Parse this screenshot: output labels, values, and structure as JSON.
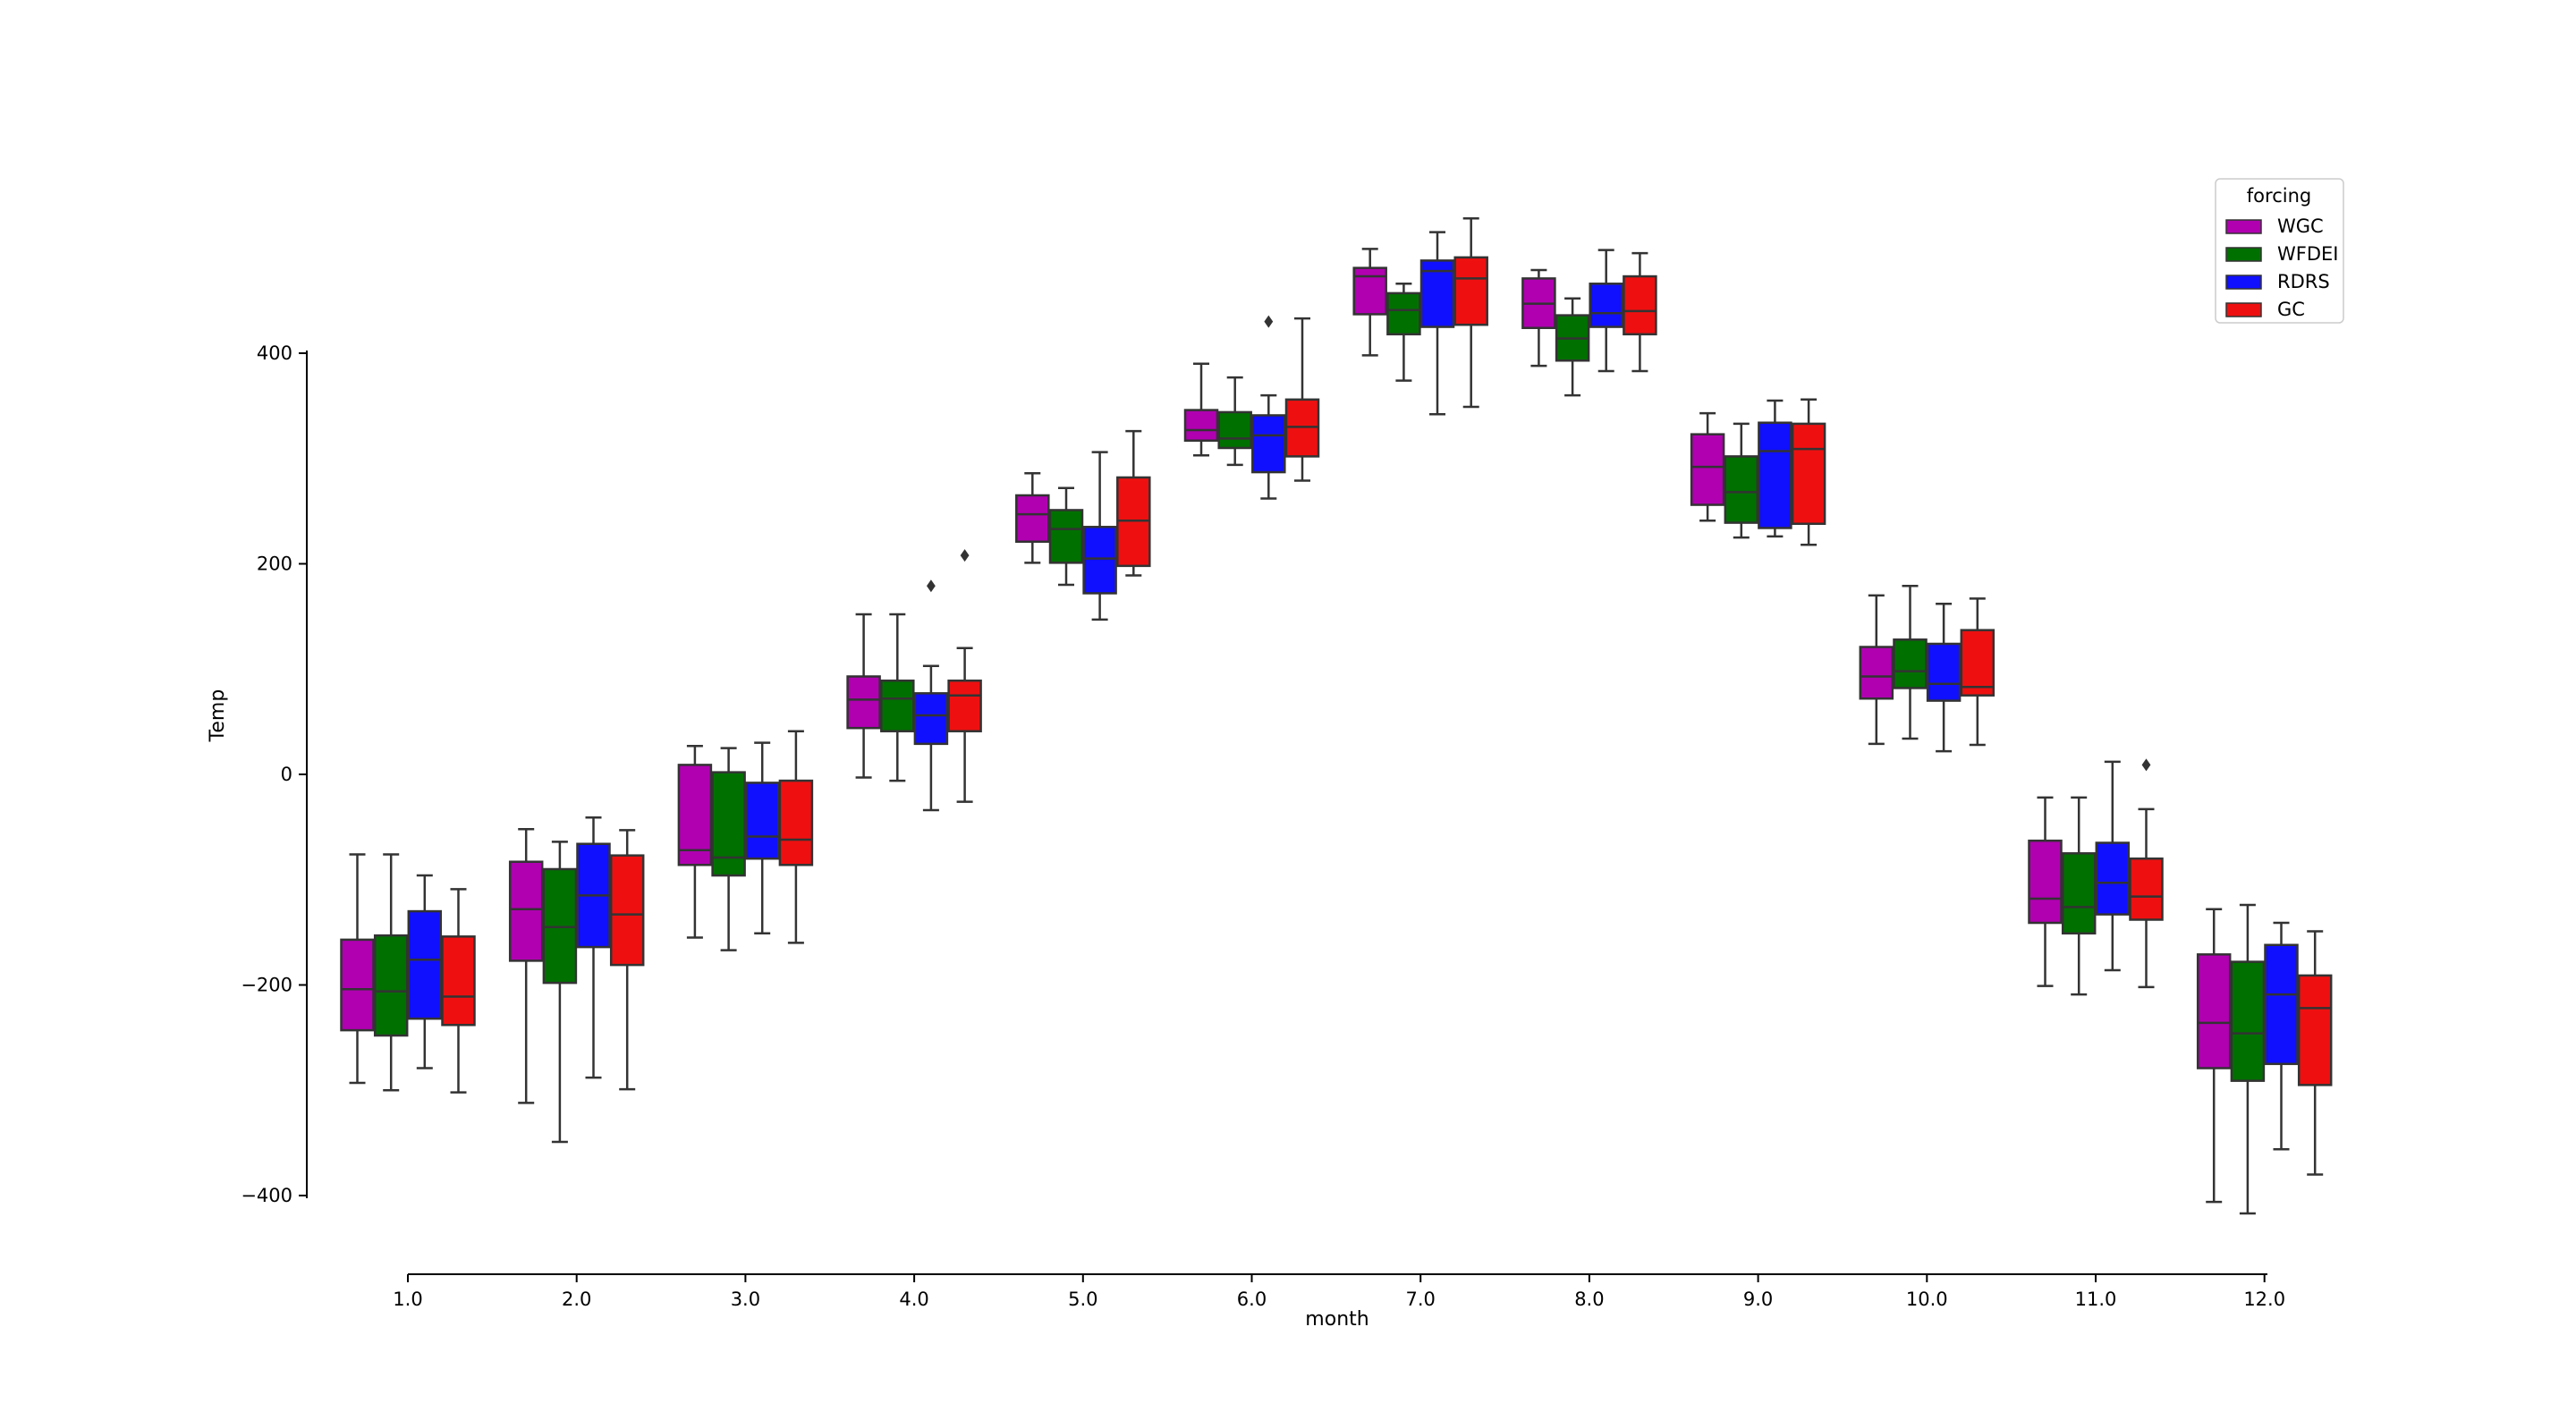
{
  "chart_data": {
    "type": "box",
    "xlabel": "month",
    "ylabel": "Temp",
    "categories": [
      "1.0",
      "2.0",
      "3.0",
      "4.0",
      "5.0",
      "6.0",
      "7.0",
      "8.0",
      "9.0",
      "10.0",
      "11.0",
      "12.0"
    ],
    "ylim": [
      -400,
      400
    ],
    "yticks": [
      -400,
      -200,
      0,
      200,
      400
    ],
    "grid": false,
    "legend": {
      "title": "forcing",
      "position": "top-right"
    },
    "series": [
      {
        "name": "WGC",
        "color": "#b000b0",
        "boxes": [
          {
            "whislo": -293,
            "q1": -243,
            "med": -204,
            "q3": -157,
            "whishi": -76,
            "fliers": []
          },
          {
            "whislo": -312,
            "q1": -177,
            "med": -128,
            "q3": -83,
            "whishi": -52,
            "fliers": []
          },
          {
            "whislo": -155,
            "q1": -86,
            "med": -72,
            "q3": 9,
            "whishi": 27,
            "fliers": []
          },
          {
            "whislo": -3,
            "q1": 44,
            "med": 71,
            "q3": 93,
            "whishi": 152,
            "fliers": []
          },
          {
            "whislo": 201,
            "q1": 221,
            "med": 247,
            "q3": 265,
            "whishi": 286,
            "fliers": []
          },
          {
            "whislo": 303,
            "q1": 317,
            "med": 327,
            "q3": 346,
            "whishi": 390,
            "fliers": []
          },
          {
            "whislo": 398,
            "q1": 437,
            "med": 473,
            "q3": 481,
            "whishi": 499,
            "fliers": []
          },
          {
            "whislo": 388,
            "q1": 424,
            "med": 447,
            "q3": 471,
            "whishi": 479,
            "fliers": []
          },
          {
            "whislo": 241,
            "q1": 256,
            "med": 292,
            "q3": 323,
            "whishi": 343,
            "fliers": []
          },
          {
            "whislo": 29,
            "q1": 72,
            "med": 93,
            "q3": 121,
            "whishi": 170,
            "fliers": []
          },
          {
            "whislo": -201,
            "q1": -141,
            "med": -118,
            "q3": -63,
            "whishi": -22,
            "fliers": []
          },
          {
            "whislo": -406,
            "q1": -279,
            "med": -236,
            "q3": -171,
            "whishi": -128,
            "fliers": []
          }
        ]
      },
      {
        "name": "WFDEI",
        "color": "#007000",
        "boxes": [
          {
            "whislo": -300,
            "q1": -248,
            "med": -206,
            "q3": -153,
            "whishi": -76,
            "fliers": []
          },
          {
            "whislo": -349,
            "q1": -198,
            "med": -145,
            "q3": -90,
            "whishi": -64,
            "fliers": []
          },
          {
            "whislo": -167,
            "q1": -96,
            "med": -79,
            "q3": 2,
            "whishi": 25,
            "fliers": []
          },
          {
            "whislo": -6,
            "q1": 41,
            "med": 72,
            "q3": 89,
            "whishi": 152,
            "fliers": []
          },
          {
            "whislo": 180,
            "q1": 201,
            "med": 233,
            "q3": 251,
            "whishi": 272,
            "fliers": []
          },
          {
            "whislo": 294,
            "q1": 310,
            "med": 319,
            "q3": 344,
            "whishi": 377,
            "fliers": []
          },
          {
            "whislo": 374,
            "q1": 418,
            "med": 441,
            "q3": 457,
            "whishi": 466,
            "fliers": []
          },
          {
            "whislo": 360,
            "q1": 393,
            "med": 414,
            "q3": 436,
            "whishi": 452,
            "fliers": []
          },
          {
            "whislo": 225,
            "q1": 239,
            "med": 268,
            "q3": 302,
            "whishi": 333,
            "fliers": []
          },
          {
            "whislo": 34,
            "q1": 82,
            "med": 98,
            "q3": 128,
            "whishi": 179,
            "fliers": []
          },
          {
            "whislo": -209,
            "q1": -151,
            "med": -126,
            "q3": -75,
            "whishi": -22,
            "fliers": []
          },
          {
            "whislo": -417,
            "q1": -291,
            "med": -246,
            "q3": -178,
            "whishi": -124,
            "fliers": []
          }
        ]
      },
      {
        "name": "RDRS",
        "color": "#1010ff",
        "boxes": [
          {
            "whislo": -279,
            "q1": -232,
            "med": -176,
            "q3": -130,
            "whishi": -96,
            "fliers": []
          },
          {
            "whislo": -288,
            "q1": -164,
            "med": -115,
            "q3": -66,
            "whishi": -41,
            "fliers": []
          },
          {
            "whislo": -151,
            "q1": -80,
            "med": -59,
            "q3": -8,
            "whishi": 30,
            "fliers": []
          },
          {
            "whislo": -34,
            "q1": 29,
            "med": 56,
            "q3": 77,
            "whishi": 103,
            "fliers": [
              179
            ]
          },
          {
            "whislo": 147,
            "q1": 172,
            "med": 205,
            "q3": 235,
            "whishi": 306,
            "fliers": []
          },
          {
            "whislo": 262,
            "q1": 287,
            "med": 322,
            "q3": 341,
            "whishi": 360,
            "fliers": [
              430
            ]
          },
          {
            "whislo": 342,
            "q1": 425,
            "med": 478,
            "q3": 488,
            "whishi": 515,
            "fliers": []
          },
          {
            "whislo": 383,
            "q1": 425,
            "med": 438,
            "q3": 466,
            "whishi": 498,
            "fliers": []
          },
          {
            "whislo": 226,
            "q1": 234,
            "med": 307,
            "q3": 334,
            "whishi": 355,
            "fliers": []
          },
          {
            "whislo": 22,
            "q1": 70,
            "med": 86,
            "q3": 124,
            "whishi": 162,
            "fliers": []
          },
          {
            "whislo": -186,
            "q1": -133,
            "med": -103,
            "q3": -65,
            "whishi": 12,
            "fliers": []
          },
          {
            "whislo": -356,
            "q1": -275,
            "med": -209,
            "q3": -162,
            "whishi": -141,
            "fliers": []
          }
        ]
      },
      {
        "name": "GC",
        "color": "#ee1010",
        "boxes": [
          {
            "whislo": -302,
            "q1": -238,
            "med": -211,
            "q3": -154,
            "whishi": -109,
            "fliers": []
          },
          {
            "whislo": -299,
            "q1": -181,
            "med": -133,
            "q3": -77,
            "whishi": -53,
            "fliers": []
          },
          {
            "whislo": -160,
            "q1": -86,
            "med": -62,
            "q3": -6,
            "whishi": 41,
            "fliers": []
          },
          {
            "whislo": -26,
            "q1": 41,
            "med": 75,
            "q3": 89,
            "whishi": 120,
            "fliers": [
              208
            ]
          },
          {
            "whislo": 189,
            "q1": 198,
            "med": 241,
            "q3": 282,
            "whishi": 326,
            "fliers": []
          },
          {
            "whislo": 279,
            "q1": 302,
            "med": 330,
            "q3": 356,
            "whishi": 433,
            "fliers": []
          },
          {
            "whislo": 349,
            "q1": 427,
            "med": 471,
            "q3": 491,
            "whishi": 528,
            "fliers": []
          },
          {
            "whislo": 383,
            "q1": 418,
            "med": 440,
            "q3": 473,
            "whishi": 495,
            "fliers": []
          },
          {
            "whislo": 218,
            "q1": 238,
            "med": 309,
            "q3": 333,
            "whishi": 356,
            "fliers": []
          },
          {
            "whislo": 28,
            "q1": 75,
            "med": 83,
            "q3": 137,
            "whishi": 167,
            "fliers": []
          },
          {
            "whislo": -202,
            "q1": -138,
            "med": -116,
            "q3": -80,
            "whishi": -33,
            "fliers": [
              9
            ]
          },
          {
            "whislo": -380,
            "q1": -295,
            "med": -222,
            "q3": -191,
            "whishi": -149,
            "fliers": []
          }
        ]
      }
    ]
  }
}
